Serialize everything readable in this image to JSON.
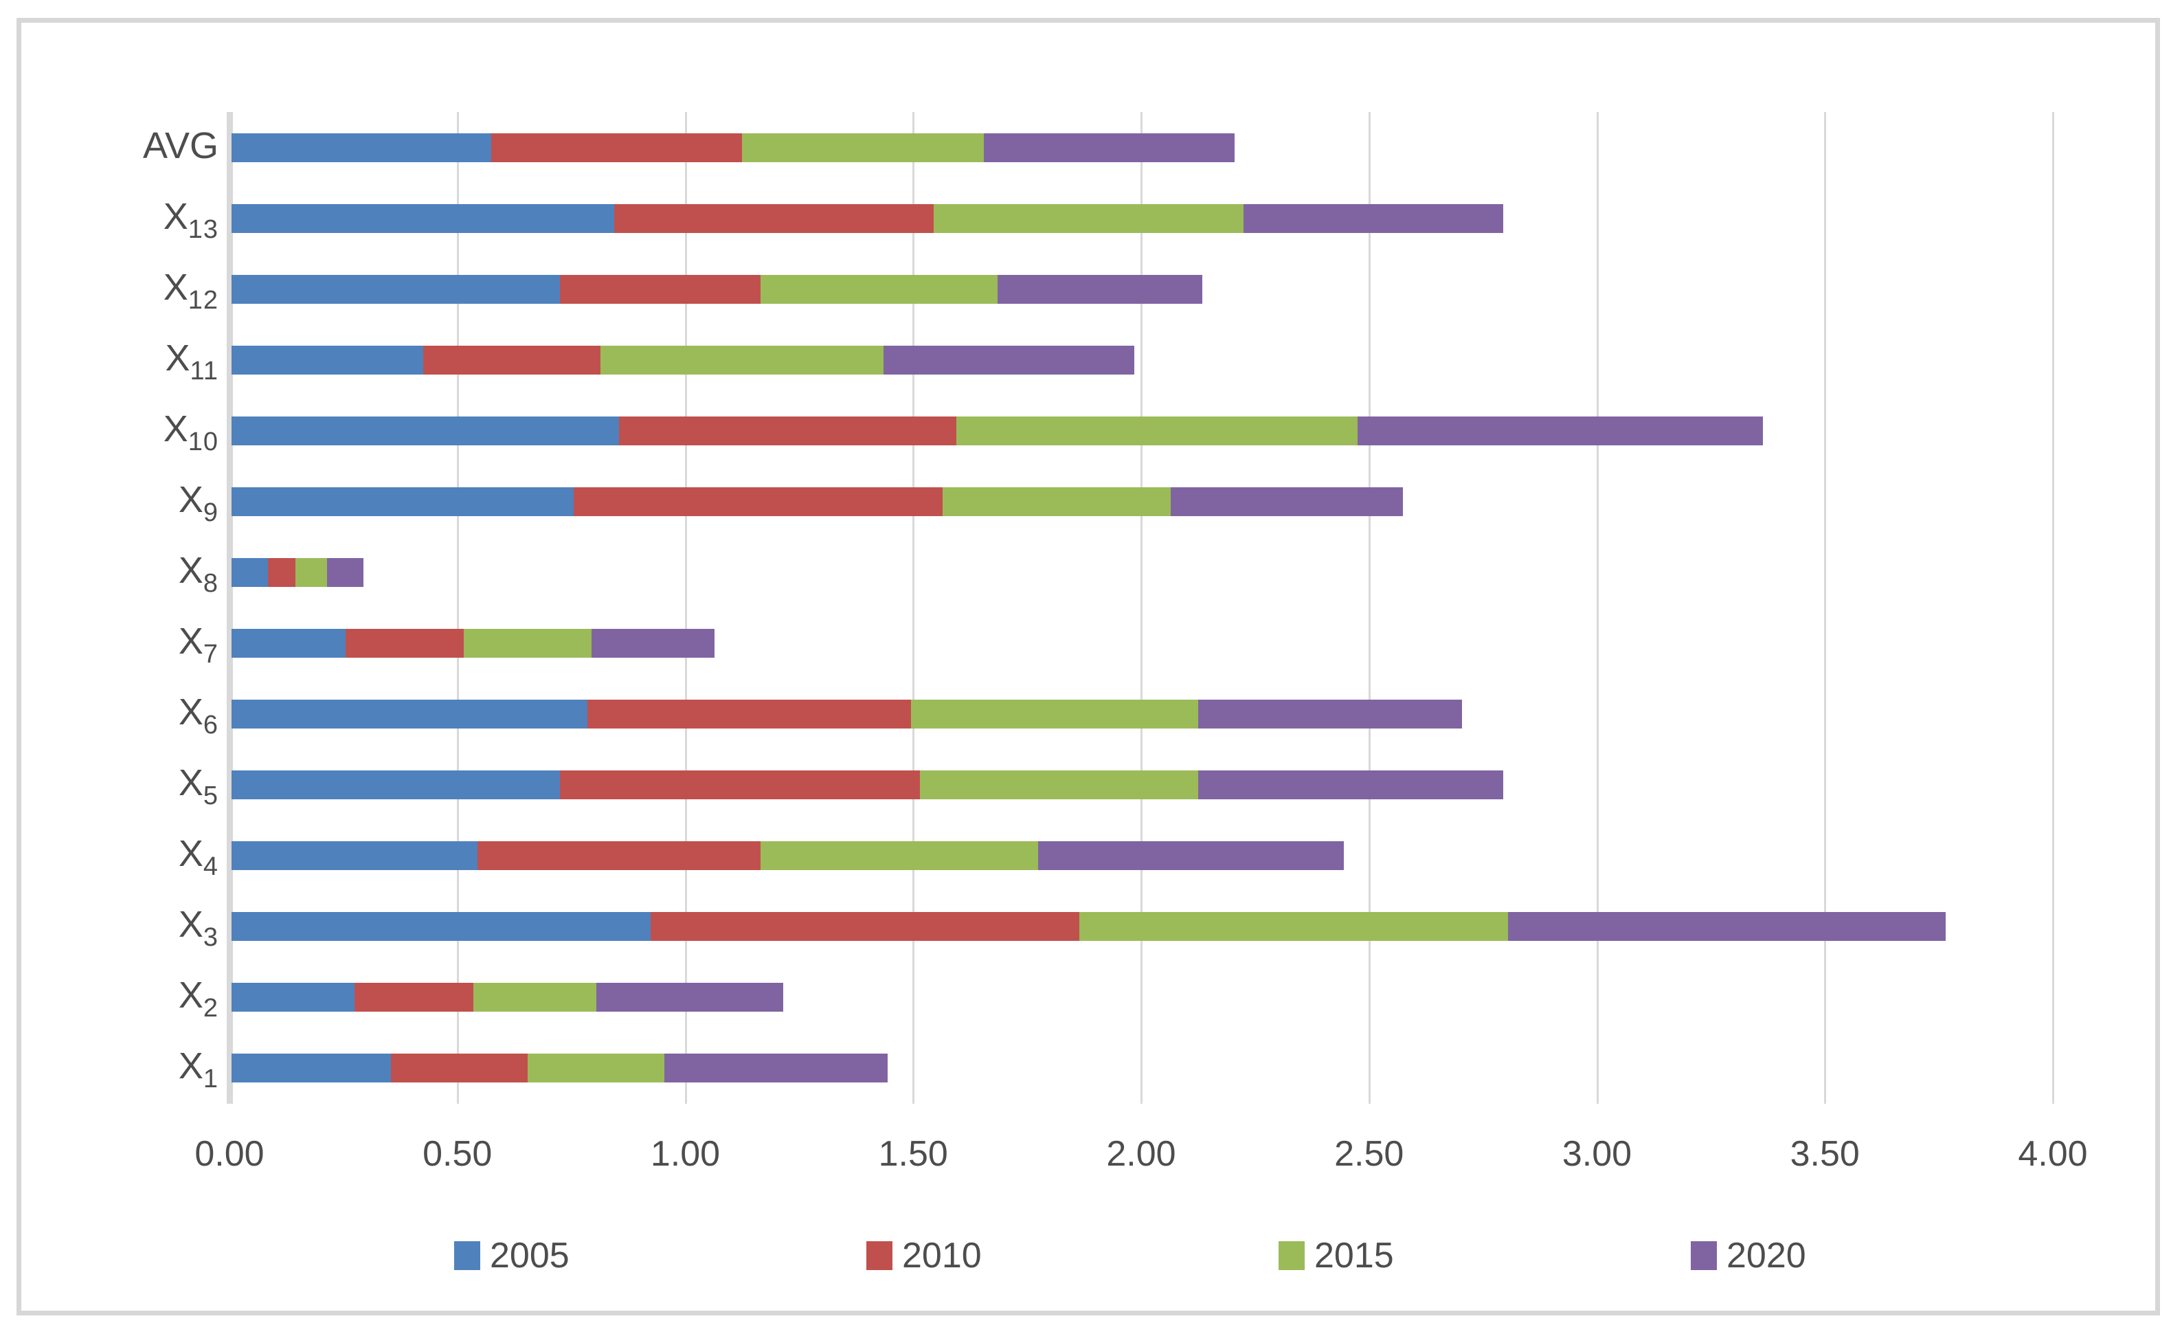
{
  "chart_data": {
    "type": "bar",
    "orientation": "horizontal",
    "stacked": true,
    "title": "",
    "xlabel": "",
    "ylabel": "",
    "xlim": [
      0,
      4
    ],
    "grid": true,
    "legend_position": "bottom",
    "categories": [
      "AVG",
      "X13",
      "X12",
      "X11",
      "X10",
      "X9",
      "X8",
      "X7",
      "X6",
      "X5",
      "X4",
      "X3",
      "X2",
      "X1"
    ],
    "category_labels": [
      {
        "base": "AVG",
        "sub": ""
      },
      {
        "base": "X",
        "sub": "13"
      },
      {
        "base": "X",
        "sub": "12"
      },
      {
        "base": "X",
        "sub": "11"
      },
      {
        "base": "X",
        "sub": "10"
      },
      {
        "base": "X",
        "sub": "9"
      },
      {
        "base": "X",
        "sub": "8"
      },
      {
        "base": "X",
        "sub": "7"
      },
      {
        "base": "X",
        "sub": "6"
      },
      {
        "base": "X",
        "sub": "5"
      },
      {
        "base": "X",
        "sub": "4"
      },
      {
        "base": "X",
        "sub": "3"
      },
      {
        "base": "X",
        "sub": "2"
      },
      {
        "base": "X",
        "sub": "1"
      }
    ],
    "series": [
      {
        "name": "2005",
        "color": "#4F81BD",
        "values": [
          0.57,
          0.84,
          0.72,
          0.42,
          0.85,
          0.75,
          0.08,
          0.25,
          0.78,
          0.72,
          0.54,
          0.92,
          0.27,
          0.35
        ]
      },
      {
        "name": "2010",
        "color": "#C0504D",
        "values": [
          0.55,
          0.7,
          0.44,
          0.39,
          0.74,
          0.81,
          0.06,
          0.26,
          0.71,
          0.79,
          0.62,
          0.94,
          0.26,
          0.3
        ]
      },
      {
        "name": "2015",
        "color": "#9BBB59",
        "values": [
          0.53,
          0.68,
          0.52,
          0.62,
          0.88,
          0.5,
          0.07,
          0.28,
          0.63,
          0.61,
          0.61,
          0.94,
          0.27,
          0.3
        ]
      },
      {
        "name": "2020",
        "color": "#8064A2",
        "values": [
          0.55,
          0.57,
          0.45,
          0.55,
          0.89,
          0.51,
          0.08,
          0.27,
          0.58,
          0.67,
          0.67,
          0.96,
          0.41,
          0.49
        ]
      }
    ],
    "x_ticks": [
      "0.00",
      "0.50",
      "1.00",
      "1.50",
      "2.00",
      "2.50",
      "3.00",
      "3.50",
      "4.00"
    ],
    "x_tick_step": 0.5
  },
  "colors": {
    "background": "#FFFFFF",
    "frame_border": "#D7D7D7",
    "gridline": "#D9D9D9",
    "axis_line": "#D9D9D9",
    "text": "#4D4D4D"
  }
}
